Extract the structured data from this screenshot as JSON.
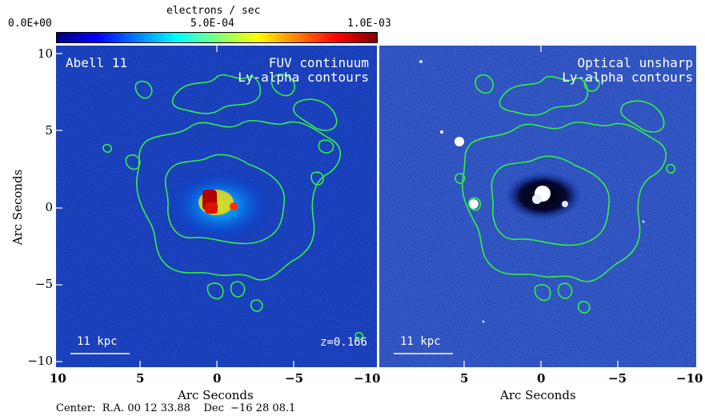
{
  "colorbar": {
    "title": "electrons / sec",
    "min_label": "0.0E+00",
    "mid_label": "5.0E-04",
    "max_label": "1.0E-03",
    "colors": [
      "#00007f",
      "#0000ff",
      "#007fff",
      "#00ffff",
      "#7fff7f",
      "#ffff00",
      "#ff7f00",
      "#ff0000",
      "#7f0000"
    ]
  },
  "left_panel": {
    "name": "Abell 11",
    "line1": "FUV continuum",
    "line2": "Ly-alpha contours",
    "scalebar": "11 kpc",
    "redshift": "z=0.166"
  },
  "right_panel": {
    "line1": "Optical unsharp",
    "line2": "Ly-alpha contours",
    "scalebar": "11 kpc"
  },
  "axes": {
    "ylabel": "Arc Seconds",
    "xlabel": "Arc Seconds",
    "y_ticks": [
      "10",
      "5",
      "0",
      "−5",
      "−10"
    ],
    "x_ticks_left": [
      "10",
      "5",
      "0",
      "−5",
      "−10"
    ],
    "x_ticks_right": [
      "5",
      "0",
      "−5",
      "−10"
    ]
  },
  "footer": {
    "center": "Center:  R.A. 00 12 33.88    Dec  −16 28 08.1"
  },
  "contour_color": "#33ee44"
}
